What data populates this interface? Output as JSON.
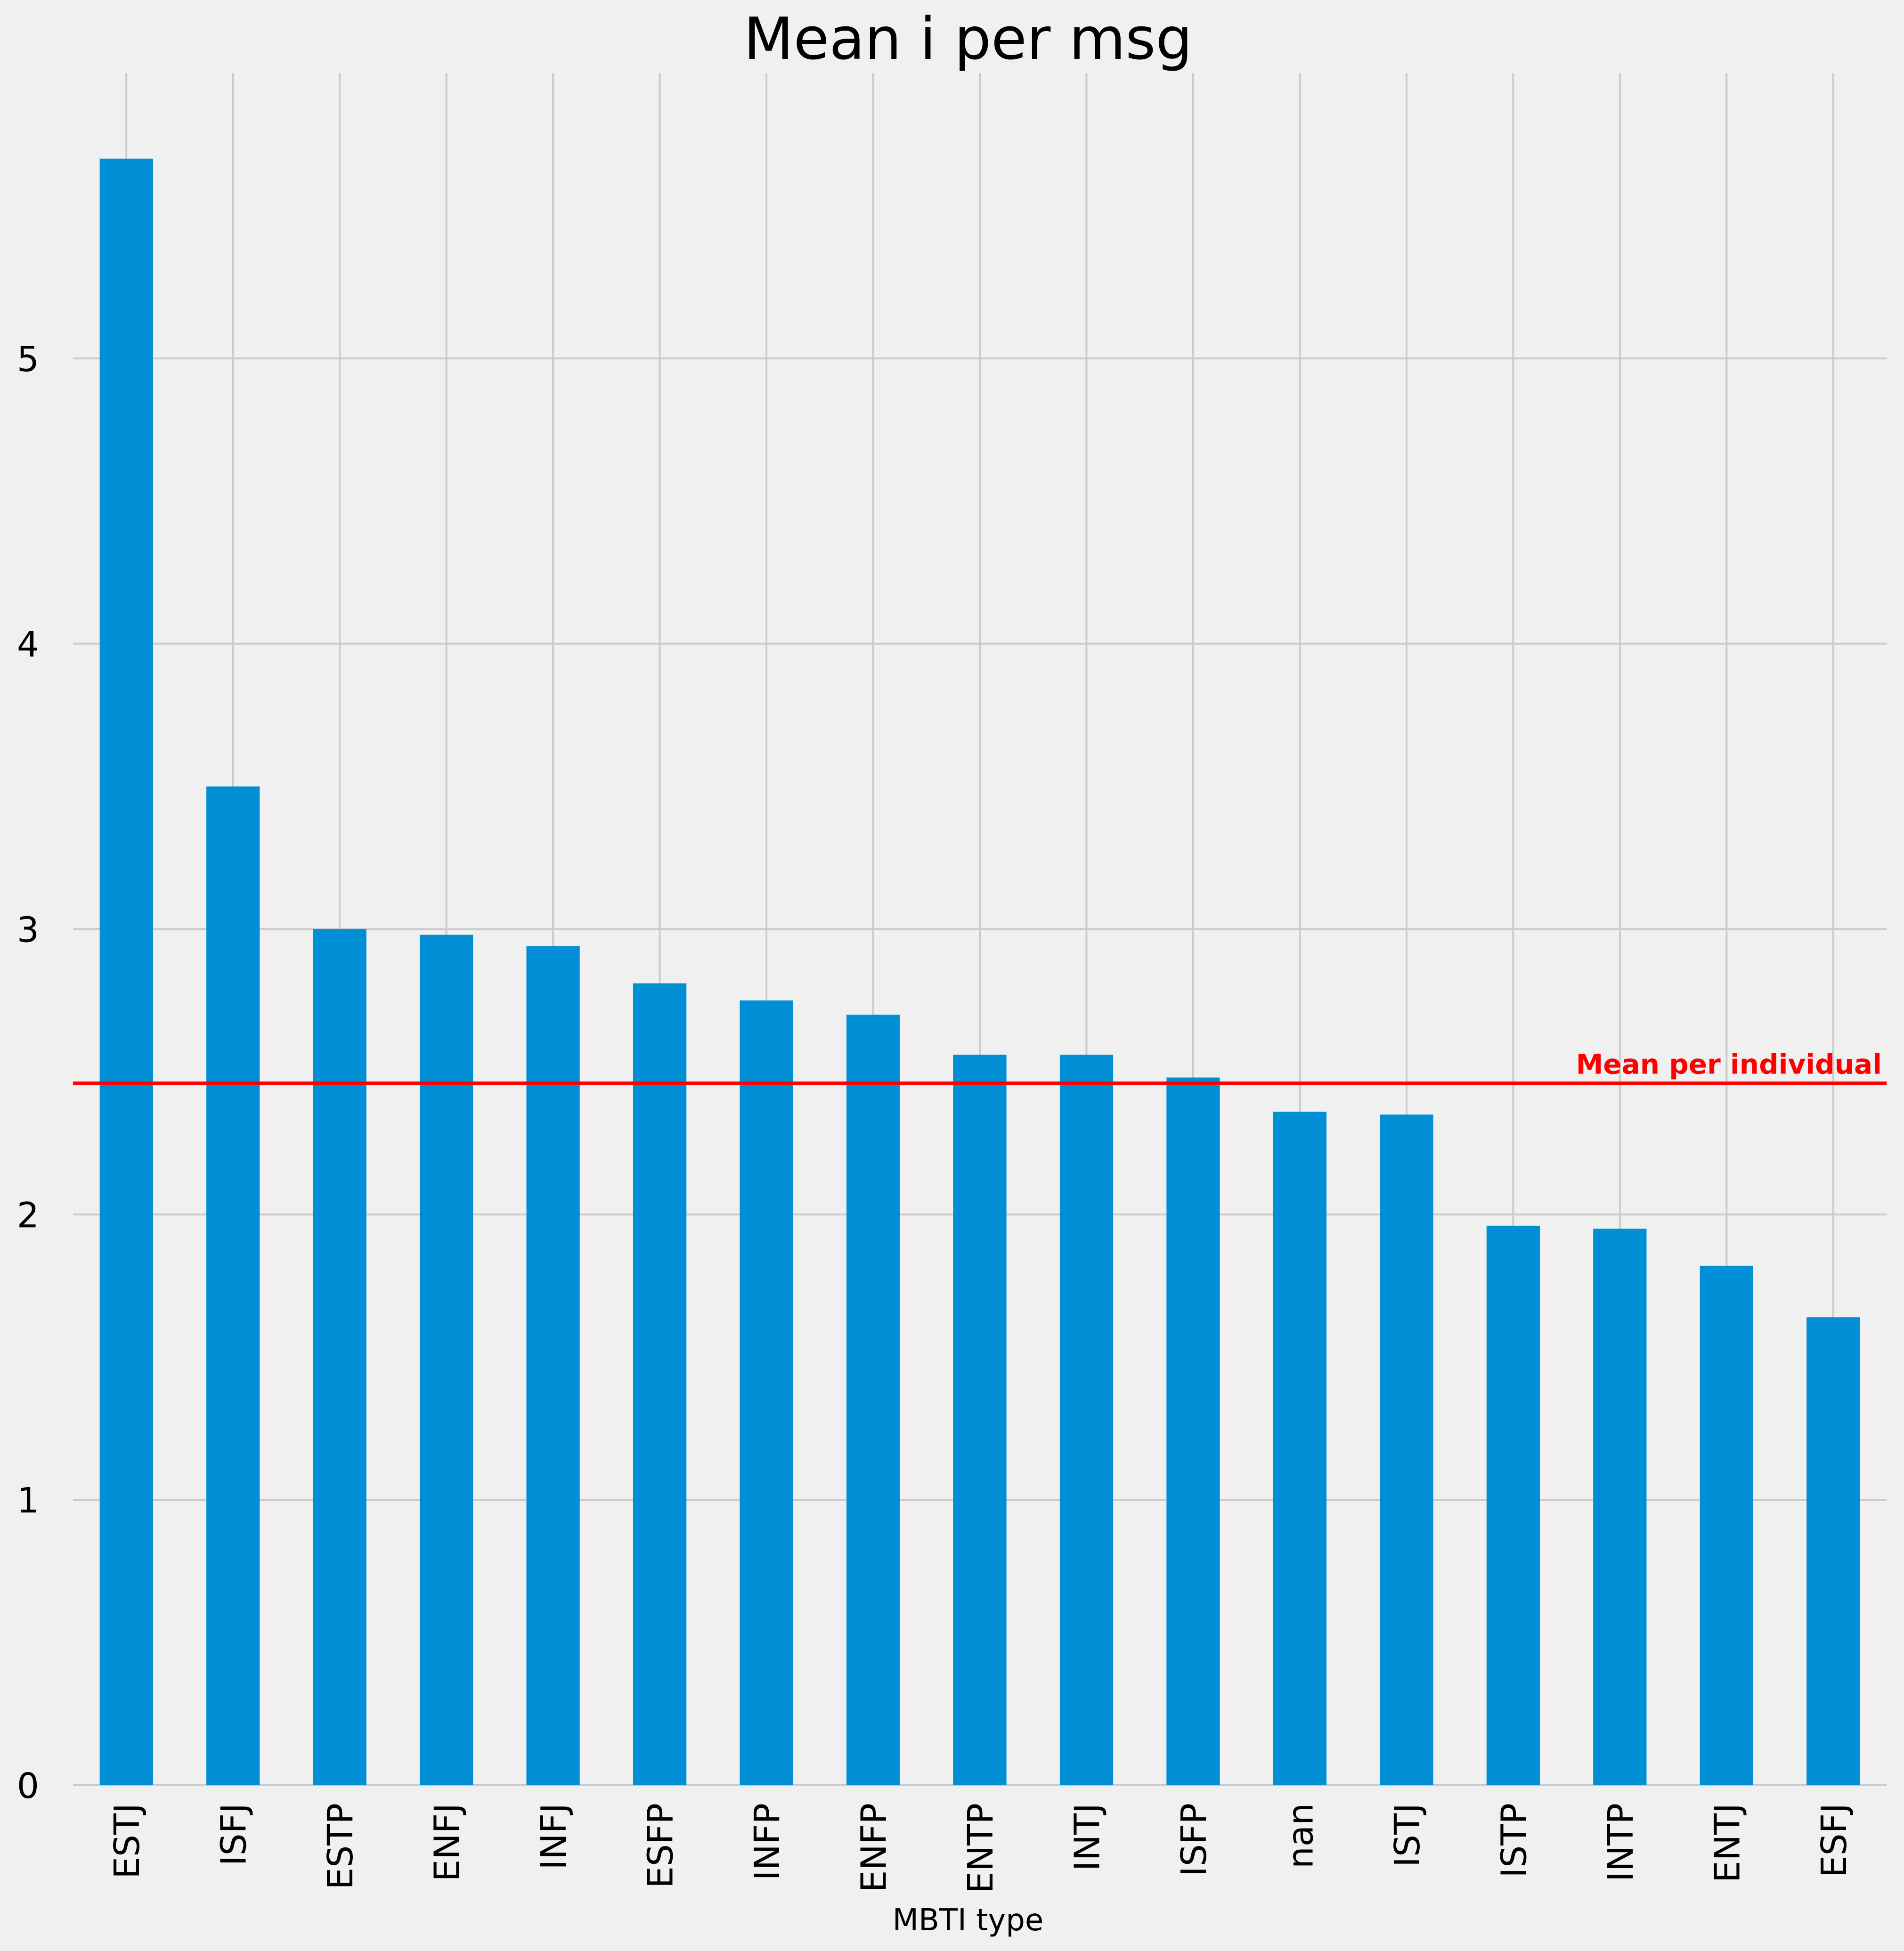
{
  "chart_data": {
    "type": "bar",
    "title": "Mean i per msg",
    "xlabel": "MBTI type",
    "ylabel": "",
    "categories": [
      "ESTJ",
      "ISFJ",
      "ESTP",
      "ENFJ",
      "INFJ",
      "ESFP",
      "INFP",
      "ENFP",
      "ENTP",
      "INTJ",
      "ISFP",
      "nan",
      "ISTJ",
      "ISTP",
      "INTP",
      "ENTJ",
      "ESFJ"
    ],
    "values": [
      5.7,
      3.5,
      3.0,
      2.98,
      2.94,
      2.81,
      2.75,
      2.7,
      2.56,
      2.56,
      2.48,
      2.36,
      2.35,
      1.96,
      1.95,
      1.82,
      1.64
    ],
    "ylim": [
      0,
      6.0
    ],
    "yticks": [
      0,
      1,
      2,
      3,
      4,
      5
    ],
    "grid": true,
    "bar_color": "#008fd5",
    "reference_line": {
      "value": 2.46,
      "label": "Mean per individual",
      "color": "#ff0000"
    }
  }
}
